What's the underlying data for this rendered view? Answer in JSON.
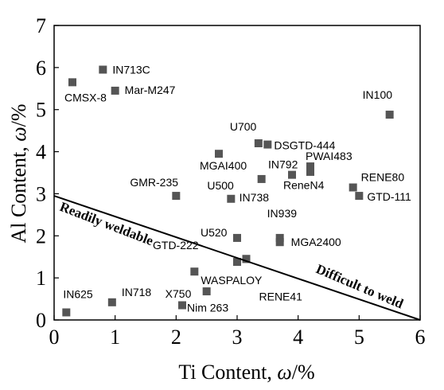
{
  "chart_data": {
    "type": "scatter",
    "title": "",
    "xlabel": {
      "prefix": "Ti Content, ",
      "symbol": "ω",
      "suffix": "/%"
    },
    "ylabel": {
      "prefix": "Al Content, ",
      "symbol": "ω",
      "suffix": "/%"
    },
    "xlim": [
      0,
      6
    ],
    "ylim": [
      0,
      7
    ],
    "xticks": [
      "0",
      "1",
      "2",
      "3",
      "4",
      "5",
      "6"
    ],
    "yticks": [
      "0",
      "1",
      "2",
      "3",
      "4",
      "5",
      "6",
      "7"
    ],
    "grid": false,
    "marker_color": "#555555",
    "points": [
      {
        "label": "IN713C",
        "x": 0.8,
        "y": 5.95
      },
      {
        "label": "CMSX-8",
        "x": 0.3,
        "y": 5.65
      },
      {
        "label": "Mar-M247",
        "x": 1.0,
        "y": 5.45
      },
      {
        "label": "IN100",
        "x": 5.5,
        "y": 4.88
      },
      {
        "label": "U700",
        "x": 3.35,
        "y": 4.2
      },
      {
        "label": "DSGTD-444",
        "x": 3.5,
        "y": 4.17
      },
      {
        "label": "MGAI400",
        "x": 2.7,
        "y": 3.95
      },
      {
        "label": "PWAI483",
        "x": 4.2,
        "y": 3.65
      },
      {
        "label": "",
        "x": 4.2,
        "y": 3.52
      },
      {
        "label": "IN792",
        "x": 3.9,
        "y": 3.45
      },
      {
        "label": "IN738",
        "x": 3.4,
        "y": 3.35
      },
      {
        "label": "ReneN4",
        "x": 4.2,
        "y": 3.57
      },
      {
        "label": "RENE80",
        "x": 4.9,
        "y": 3.15
      },
      {
        "label": "GMR-235",
        "x": 2.0,
        "y": 2.95
      },
      {
        "label": "U500",
        "x": 2.9,
        "y": 2.88
      },
      {
        "label": "GTD-111",
        "x": 5.0,
        "y": 2.95
      },
      {
        "label": "IN939",
        "x": 3.7,
        "y": 1.95
      },
      {
        "label": "U520",
        "x": 3.0,
        "y": 1.95
      },
      {
        "label": "MGA2400",
        "x": 3.7,
        "y": 1.85
      },
      {
        "label": "GTD-222",
        "x": 3.0,
        "y": 1.38
      },
      {
        "label": "",
        "x": 3.15,
        "y": 1.45
      },
      {
        "label": "WASPALOY",
        "x": 2.3,
        "y": 1.15
      },
      {
        "label": "RENE41",
        "x": 3.15,
        "y": 1.45
      },
      {
        "label": "X750",
        "x": 2.5,
        "y": 0.68
      },
      {
        "label": "IN718",
        "x": 0.95,
        "y": 0.42
      },
      {
        "label": "Nim 263",
        "x": 2.1,
        "y": 0.35
      },
      {
        "label": "IN625",
        "x": 0.2,
        "y": 0.18
      }
    ],
    "boundary": {
      "from": [
        0,
        2.95
      ],
      "to": [
        6,
        0
      ]
    },
    "annotations": [
      "Readily weldable",
      "Difficult to weld"
    ]
  }
}
